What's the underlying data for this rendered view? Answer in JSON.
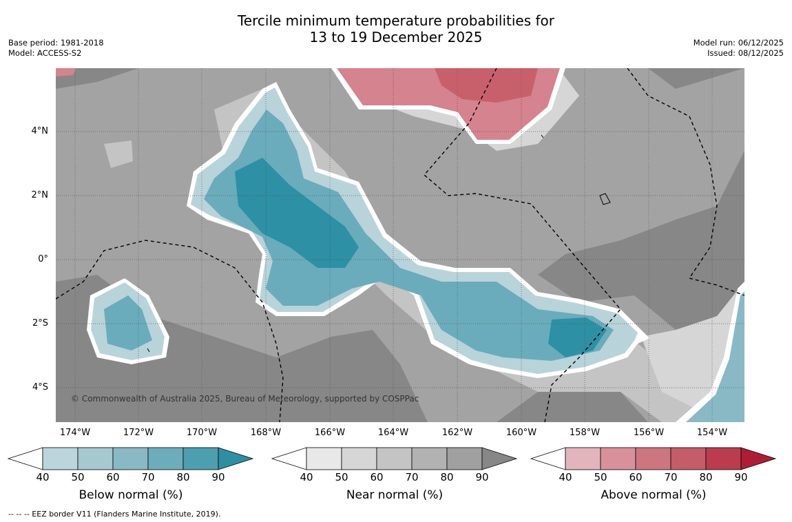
{
  "title": {
    "line1": "Tercile minimum temperature probabilities for",
    "line2": "13 to 19 December 2025"
  },
  "meta_left": {
    "base_period": "Base period: 1981-2018",
    "model": "Model: ACCESS-S2"
  },
  "meta_right": {
    "model_run": "Model run: 06/12/2025",
    "issued": "Issued: 08/12/2025"
  },
  "map": {
    "copyright": "© Commonwealth of Australia 2025, Bureau of Meteorology, supported by COSPPac",
    "lat_labels": [
      "4°N",
      "2°N",
      "0°",
      "2°S",
      "4°S"
    ],
    "lon_labels": [
      "174°W",
      "172°W",
      "170°W",
      "168°W",
      "166°W",
      "164°W",
      "162°W",
      "160°W",
      "158°W",
      "156°W",
      "154°W"
    ],
    "colors": {
      "near_light": "#d6d6d6",
      "near_mid": "#a3a3a3",
      "near_dark": "#878787",
      "below_light": "#b9d3da",
      "below_mid": "#6aacbb",
      "below_dark": "#2d90a5",
      "above_light": "#e0b3ba",
      "above_mid": "#d5838e",
      "above_dark": "#c8606c"
    }
  },
  "colorbars": [
    {
      "title": "Below normal (%)",
      "ticks": [
        "40",
        "50",
        "60",
        "70",
        "80",
        "90"
      ],
      "colors": [
        "#bcd5dc",
        "#a6c8cf",
        "#8ab9c6",
        "#6dadbb",
        "#4d9fb0",
        "#2e8fa3"
      ]
    },
    {
      "title": "Near normal (%)",
      "ticks": [
        "40",
        "50",
        "60",
        "70",
        "80",
        "90"
      ],
      "colors": [
        "#e8e8e8",
        "#d6d6d6",
        "#c4c4c4",
        "#b2b2b2",
        "#a0a0a0",
        "#878787"
      ]
    },
    {
      "title": "Above normal (%)",
      "ticks": [
        "40",
        "50",
        "60",
        "70",
        "80",
        "90"
      ],
      "colors": [
        "#e2b5bc",
        "#d8919a",
        "#cc7680",
        "#c45c69",
        "#bb3c4e",
        "#ad1d36"
      ]
    }
  ],
  "footnote": "--  --  -- EEZ border V11 (Flanders Marine Institute, 2019)."
}
